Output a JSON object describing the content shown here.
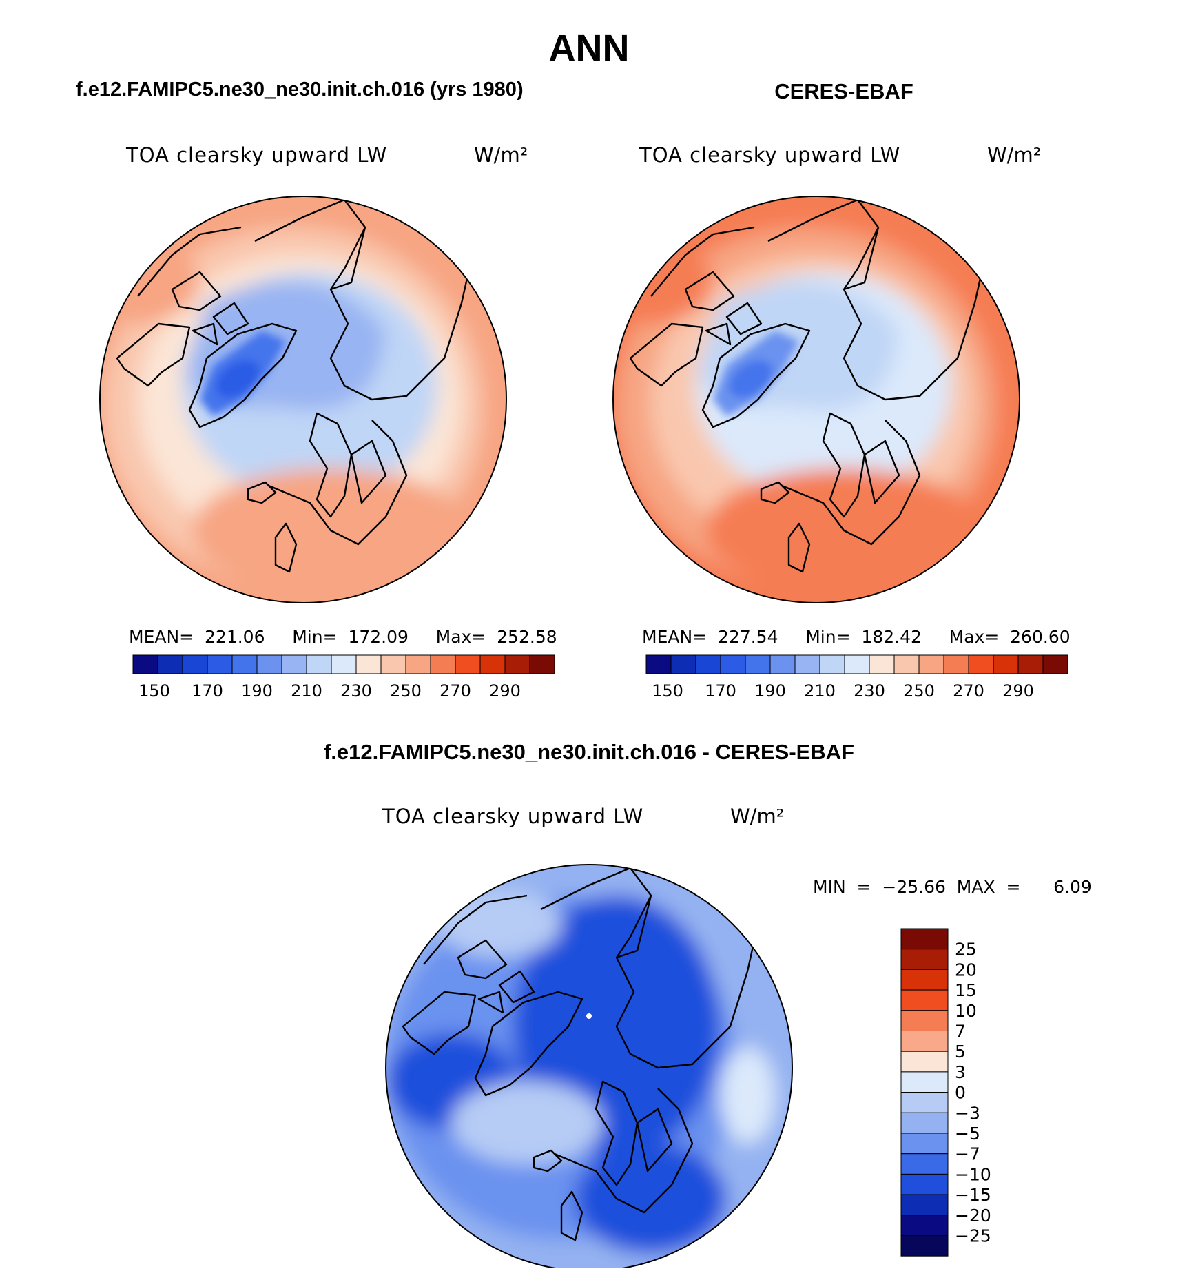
{
  "page": {
    "season": "ANN",
    "left_case": "f.e12.FAMIPC5.ne30_ne30.init.ch.016 (yrs 1980)",
    "right_case": "CERES-EBAF",
    "diff_title": "f.e12.FAMIPC5.ne30_ne30.init.ch.016 - CERES-EBAF"
  },
  "chart_data": [
    {
      "type": "heatmap",
      "projection": "polar-stereographic (north pole)",
      "variable": "TOA clearsky upward LW",
      "units": "W/m²",
      "stats": {
        "mean": "221.06",
        "min": "172.09",
        "max": "252.58"
      },
      "stats_text": "MEAN=  221.06     Min=  172.09     Max=  252.58",
      "colorbar": {
        "orientation": "horizontal",
        "levels": [
          "150",
          "170",
          "190",
          "210",
          "230",
          "250",
          "270",
          "290"
        ],
        "colors": [
          "#0a0a82",
          "#0c2db4",
          "#1a46d6",
          "#2c5ce6",
          "#4474ec",
          "#6b92ef",
          "#98b4f2",
          "#c0d6f6",
          "#dbe9fb",
          "#fbe5d6",
          "#f9c7ae",
          "#f7a583",
          "#f57d53",
          "#f04e20",
          "#d83208",
          "#a81d06",
          "#7a0b04"
        ]
      },
      "regions": {
        "arctic_basin_W_m2": 200,
        "greenland_W_m2": 172,
        "subpolar_ring_W_m2": 230,
        "outer_ring_W_m2": 250
      }
    },
    {
      "type": "heatmap",
      "projection": "polar-stereographic (north pole)",
      "variable": "TOA clearsky upward LW",
      "units": "W/m²",
      "stats": {
        "mean": "227.54",
        "min": "182.42",
        "max": "260.60"
      },
      "stats_text": "MEAN=  227.54     Min=  182.42     Max=  260.60",
      "colorbar": {
        "orientation": "horizontal",
        "levels": [
          "150",
          "170",
          "190",
          "210",
          "230",
          "250",
          "270",
          "290"
        ],
        "colors": [
          "#0a0a82",
          "#0c2db4",
          "#1a46d6",
          "#2c5ce6",
          "#4474ec",
          "#6b92ef",
          "#98b4f2",
          "#c0d6f6",
          "#dbe9fb",
          "#fbe5d6",
          "#f9c7ae",
          "#f7a583",
          "#f57d53",
          "#f04e20",
          "#d83208",
          "#a81d06",
          "#7a0b04"
        ]
      },
      "regions": {
        "arctic_basin_W_m2": 208,
        "greenland_W_m2": 185,
        "subpolar_ring_W_m2": 235,
        "outer_ring_W_m2": 258
      }
    },
    {
      "type": "heatmap",
      "projection": "polar-stereographic (north pole)",
      "variable": "TOA clearsky upward LW",
      "units": "W/m²",
      "stats": {
        "min": "-25.66",
        "max": "6.09"
      },
      "stats_text": "MIN  =  −25.66  MAX  =      6.09",
      "colorbar": {
        "orientation": "vertical",
        "levels": [
          "25",
          "20",
          "15",
          "10",
          "7",
          "5",
          "3",
          "0",
          "−3",
          "−5",
          "−7",
          "−10",
          "−15",
          "−20",
          "−25"
        ],
        "colors": [
          "#7a0b04",
          "#a81d06",
          "#d83208",
          "#f04e20",
          "#f57d53",
          "#f9a98a",
          "#fbe5d6",
          "#dbe9fb",
          "#b6ccf5",
          "#94b2f1",
          "#6b92ef",
          "#3a6ae8",
          "#1f4fdc",
          "#0c2db4",
          "#0a0a82",
          "#06065a"
        ]
      },
      "regions": {
        "arctic_basin_W_m2": -10,
        "greenland_W_m2": -4,
        "outer_ring_W_m2": -5
      }
    }
  ]
}
